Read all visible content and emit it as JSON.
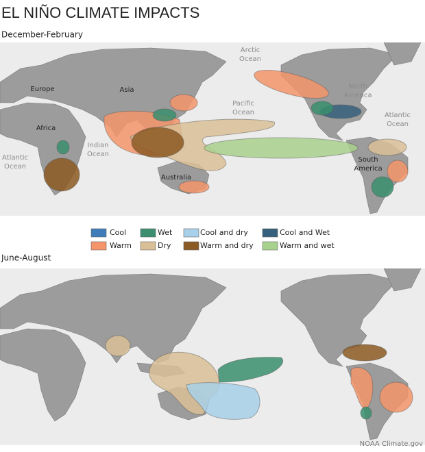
{
  "header": {
    "title": "EL NIÑO CLIMATE IMPACTS"
  },
  "maps": [
    {
      "season": "December-February",
      "labels": [
        {
          "lines": [
            "Arctic",
            "Ocean"
          ]
        },
        {
          "lines": [
            "Europe"
          ]
        },
        {
          "lines": [
            "Asia"
          ]
        },
        {
          "lines": [
            "North",
            "America"
          ]
        },
        {
          "lines": [
            "Pacific",
            "Ocean"
          ]
        },
        {
          "lines": [
            "Atlantic",
            "Ocean"
          ]
        },
        {
          "lines": [
            "Africa"
          ]
        },
        {
          "lines": [
            "Indian",
            "Ocean"
          ]
        },
        {
          "lines": [
            "Atlantic",
            "Ocean"
          ]
        },
        {
          "lines": [
            "Australia"
          ]
        },
        {
          "lines": [
            "South",
            "America"
          ]
        }
      ]
    },
    {
      "season": "June-August"
    }
  ],
  "legend": [
    {
      "label": "Cool",
      "color": "#3d7cb8"
    },
    {
      "label": "Wet",
      "color": "#3a8f6e"
    },
    {
      "label": "Cool and dry",
      "color": "#a8d0e8"
    },
    {
      "label": "Cool and Wet",
      "color": "#36607d"
    },
    {
      "label": "Warm",
      "color": "#f4956b"
    },
    {
      "label": "Dry",
      "color": "#d9bf97"
    },
    {
      "label": "Warm and dry",
      "color": "#8c5a23"
    },
    {
      "label": "Warm and wet",
      "color": "#a9d18e"
    }
  ],
  "credit": "NOAA Climate.gov"
}
